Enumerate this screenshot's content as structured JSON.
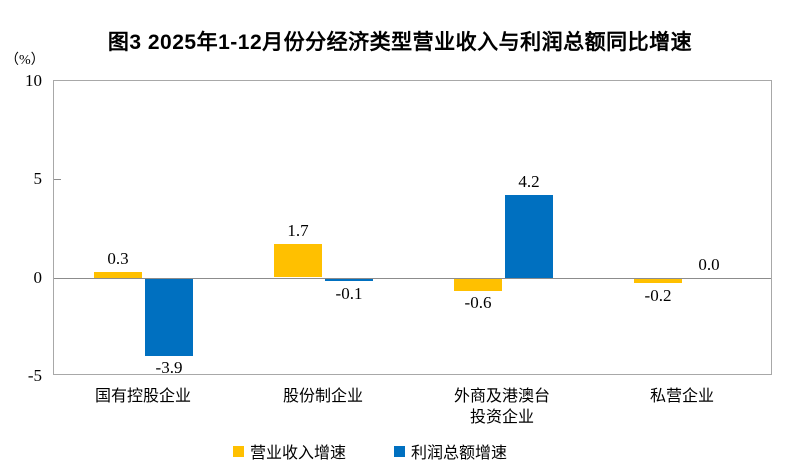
{
  "title": "图3 2025年1-12月份分经济类型营业收入与利润总额同比增速",
  "unit_label": "（%）",
  "chart_data": {
    "type": "bar",
    "categories": [
      "国有控股企业",
      "股份制企业",
      "外商及港澳台\n投资企业",
      "私营企业"
    ],
    "series": [
      {
        "name": "营业收入增速",
        "color": "#FFC000",
        "values": [
          0.3,
          1.7,
          -0.6,
          -0.2
        ],
        "labels": [
          "0.3",
          "1.7",
          "-0.6",
          "-0.2"
        ]
      },
      {
        "name": "利润总额增速",
        "color": "#0070C0",
        "values": [
          -3.9,
          -0.1,
          4.2,
          0.0
        ],
        "labels": [
          "-3.9",
          "-0.1",
          "4.2",
          "0.0"
        ]
      }
    ],
    "ylim": [
      -5,
      10
    ],
    "yticks": [
      10,
      5,
      0,
      -5
    ],
    "grid": false,
    "legend_position": "bottom",
    "axis_color": "#a8a8a8",
    "zero_line_color": "#8c8c8c"
  }
}
